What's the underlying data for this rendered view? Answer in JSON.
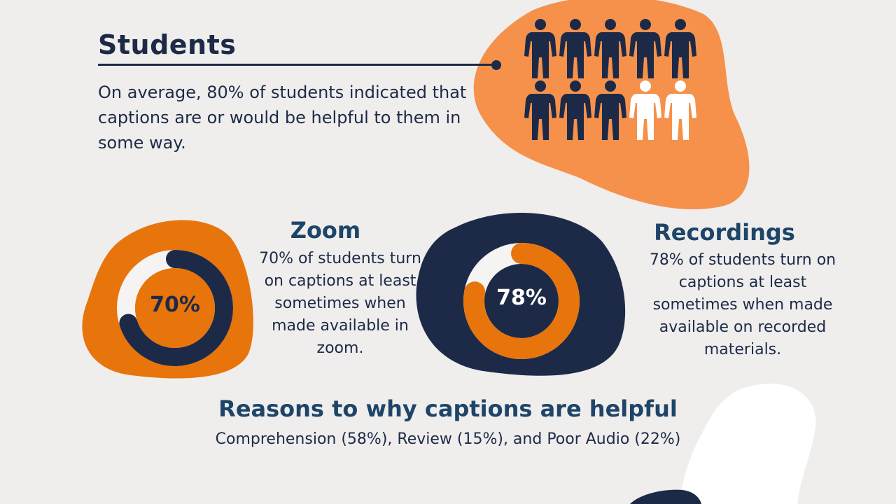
{
  "students": {
    "title": "Students",
    "description": "On average, 80% of students indicated that captions are or would be helpful to them in some way.",
    "percent": 80,
    "people_total": 10,
    "people_highlighted": 8
  },
  "zoom": {
    "title": "Zoom",
    "percent": 70,
    "percent_label": "70%",
    "description": "70% of students turn on captions at least sometimes when made available in zoom."
  },
  "recordings": {
    "title": "Recordings",
    "percent": 78,
    "percent_label": "78%",
    "description": "78% of students turn on captions at least sometimes when made available on recorded materials."
  },
  "reasons": {
    "title": "Reasons to why captions are helpful",
    "subtitle": "Comprehension (58%), Review (15%), and Poor Audio (22%)"
  },
  "colors": {
    "navy": "#1d2a47",
    "orange": "#e8740c",
    "light_orange": "#f6914b",
    "background": "#efeeed",
    "heading_blue": "#1e4468"
  }
}
